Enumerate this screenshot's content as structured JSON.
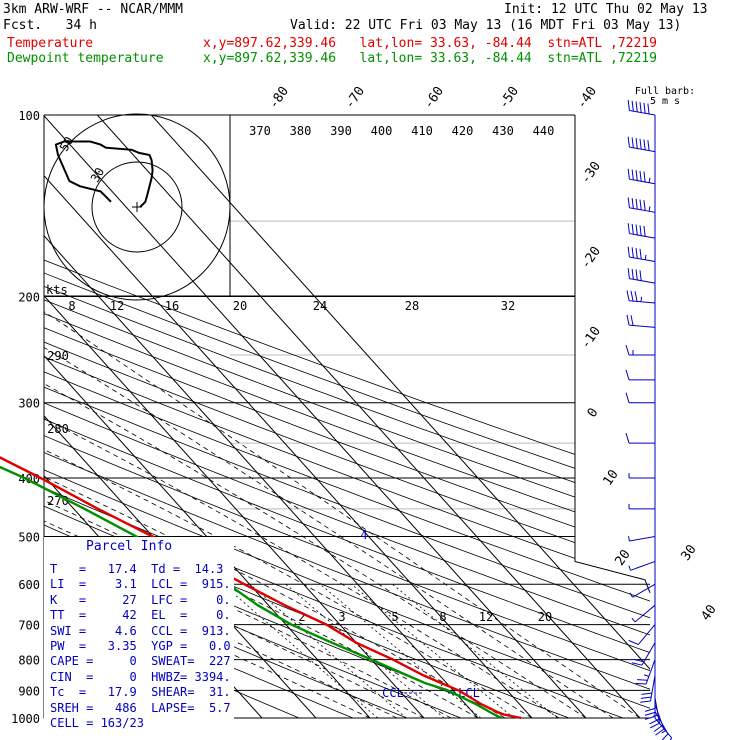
{
  "header": {
    "title": "3km ARW-WRF -- NCAR/MMM",
    "init": "Init: 12 UTC Thu 02 May 13",
    "fcst": "Fcst.   34 h",
    "valid": "Valid: 22 UTC Fri 03 May 13 (16 MDT Fri 03 May 13)",
    "temp_label": "Temperature",
    "temp_loc": "x,y=897.62,339.46   lat,lon= 33.63, -84.44  stn=ATL ,72219",
    "dew_label": "Dewpoint temperature",
    "dew_loc": "x,y=897.62,339.46   lat,lon= 33.63, -84.44  stn=ATL ,72219"
  },
  "colors": {
    "temperature": "#e00000",
    "dewpoint": "#009000",
    "parcel_text": "#0000c0",
    "wind_barbs": "#0000c0"
  },
  "chart_data": {
    "type": "line",
    "y_axis": {
      "label": "",
      "scale": "log",
      "range": [
        1000,
        100
      ],
      "ticks": [
        100,
        200,
        300,
        400,
        500,
        600,
        700,
        800,
        900,
        1000
      ]
    },
    "temp_ticks_diag": [
      "-80",
      "-70",
      "-60",
      "-50",
      "-40",
      "-30",
      "-20",
      "-10",
      "0",
      "10",
      "20",
      "30",
      "40"
    ],
    "theta_labels": [
      "370",
      "380",
      "390",
      "400",
      "410",
      "420",
      "430",
      "440"
    ],
    "theta_side_labels": [
      "290",
      "280",
      "270"
    ],
    "mixing_ratio_labels": [
      "2",
      "3",
      "5",
      "8",
      "12",
      "20"
    ],
    "wind_speed_labels": [
      "8",
      "12",
      "16",
      "20",
      "24",
      "28",
      "32"
    ],
    "series": [
      {
        "name": "Temperature",
        "pressure": [
          1000,
          985,
          950,
          900,
          875,
          850,
          800,
          750,
          700,
          650,
          600,
          550,
          500,
          450,
          400,
          350,
          300,
          250,
          225,
          200,
          180,
          160,
          140,
          125,
          110,
          100
        ],
        "values": [
          18,
          15,
          13,
          11,
          9,
          7,
          4,
          0,
          -2.5,
          -7,
          -11,
          -15,
          -20,
          -25.5,
          -31,
          -38,
          -45,
          -54,
          -58.5,
          -63,
          -65,
          -67,
          -68,
          -67.5,
          -67,
          -66
        ]
      },
      {
        "name": "Dewpoint temperature",
        "pressure": [
          1000,
          985,
          950,
          900,
          875,
          850,
          800,
          750,
          700,
          650,
          600,
          550,
          500,
          450,
          400,
          370,
          350,
          320,
          300,
          280,
          250,
          225,
          200,
          190,
          180,
          160,
          140,
          125,
          110,
          100
        ],
        "values": [
          14.3,
          13.5,
          12,
          9,
          6,
          4,
          0,
          -4.5,
          -9,
          -12,
          -14,
          -19,
          -23,
          -28,
          -34,
          -39,
          -44,
          -48,
          -52,
          -56,
          -60,
          -63,
          -66,
          -70,
          -74,
          -76,
          -76,
          -76,
          -75,
          -75
        ]
      }
    ],
    "hodograph": {
      "unit": "kts",
      "ring_labels": [
        "50",
        "30"
      ],
      "u": [
        3,
        8,
        10,
        12,
        14,
        15,
        14,
        12,
        2,
        -5,
        -30,
        -35,
        -45,
        -70,
        -78,
        -76,
        -65,
        -55,
        -35,
        -25
      ],
      "v": [
        0,
        5,
        12,
        20,
        28,
        35,
        45,
        50,
        52,
        55,
        57,
        60,
        63,
        63,
        60,
        50,
        25,
        20,
        15,
        5
      ]
    },
    "levels_marked": {
      "ccl_label": "CCL",
      "lcl_label": "LCL",
      "lfc_label": "4"
    },
    "wind_barbs": [
      {
        "p": 100,
        "dir": 280,
        "kt": 60
      },
      {
        "p": 115,
        "dir": 280,
        "kt": 60
      },
      {
        "p": 130,
        "dir": 280,
        "kt": 55
      },
      {
        "p": 145,
        "dir": 280,
        "kt": 55
      },
      {
        "p": 160,
        "dir": 280,
        "kt": 50
      },
      {
        "p": 175,
        "dir": 280,
        "kt": 45
      },
      {
        "p": 190,
        "dir": 280,
        "kt": 40
      },
      {
        "p": 205,
        "dir": 275,
        "kt": 35
      },
      {
        "p": 225,
        "dir": 275,
        "kt": 20
      },
      {
        "p": 250,
        "dir": 270,
        "kt": 15
      },
      {
        "p": 275,
        "dir": 270,
        "kt": 12
      },
      {
        "p": 300,
        "dir": 270,
        "kt": 10
      },
      {
        "p": 350,
        "dir": 270,
        "kt": 10
      },
      {
        "p": 400,
        "dir": 270,
        "kt": 8
      },
      {
        "p": 450,
        "dir": 270,
        "kt": 8
      },
      {
        "p": 500,
        "dir": 260,
        "kt": 8
      },
      {
        "p": 550,
        "dir": 250,
        "kt": 8
      },
      {
        "p": 600,
        "dir": 240,
        "kt": 8
      },
      {
        "p": 650,
        "dir": 230,
        "kt": 8
      },
      {
        "p": 700,
        "dir": 220,
        "kt": 12
      },
      {
        "p": 750,
        "dir": 210,
        "kt": 20
      },
      {
        "p": 800,
        "dir": 200,
        "kt": 25
      },
      {
        "p": 850,
        "dir": 190,
        "kt": 30
      },
      {
        "p": 900,
        "dir": 180,
        "kt": 30
      },
      {
        "p": 925,
        "dir": 170,
        "kt": 25
      },
      {
        "p": 950,
        "dir": 160,
        "kt": 20
      },
      {
        "p": 975,
        "dir": 150,
        "kt": 15
      },
      {
        "p": 1000,
        "dir": 140,
        "kt": 10
      }
    ],
    "legend_full_barb": "Full barb:",
    "legend_full_barb_unit": "5 m s",
    "grid": true
  },
  "parcel_info": {
    "title": "Parcel Info",
    "rows": [
      "T   =   17.4  Td =  14.3",
      "LI  =    3.1  LCL =  915.",
      "K   =     27  LFC =    0.",
      "TT  =     42  EL  =    0.",
      "SWI =    4.6  CCL =  913.",
      "PW  =   3.35  YGP =   0.0",
      "CAPE =     0  SWEAT=  227",
      "CIN  =     0  HWBZ= 3394.",
      "Tc  =   17.9  SHEAR=  31.",
      "SREH =   486  LAPSE=  5.7",
      "CELL = 163/23"
    ]
  }
}
